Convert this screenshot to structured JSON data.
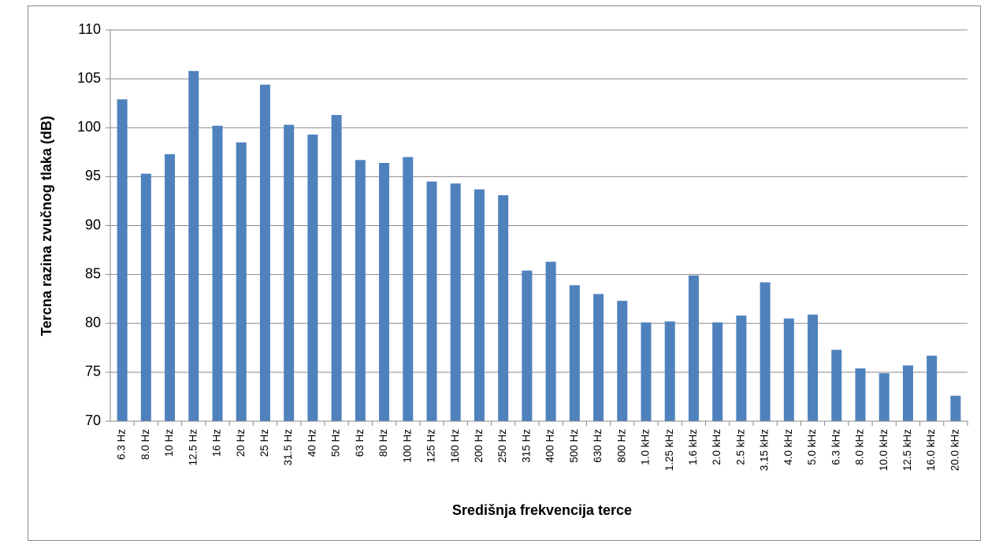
{
  "chart_data": {
    "type": "bar",
    "x_label": "Središnja frekvencija terce",
    "y_label": "Tercna razina zvučnog tlaka (dB)",
    "categories": [
      "6.3 Hz",
      "8.0 Hz",
      "10 Hz",
      "12.5 Hz",
      "16 Hz",
      "20 Hz",
      "25 Hz",
      "31.5 Hz",
      "40 Hz",
      "50 Hz",
      "63 Hz",
      "80 Hz",
      "100 Hz",
      "125 Hz",
      "160 Hz",
      "200 Hz",
      "250 Hz",
      "315 Hz",
      "400 Hz",
      "500 Hz",
      "630 Hz",
      "800 Hz",
      "1.0 kHz",
      "1.25 kHz",
      "1.6 kHz",
      "2.0 kHz",
      "2.5 kHz",
      "3.15 kHz",
      "4.0 kHz",
      "5.0 kHz",
      "6.3 kHz",
      "8.0 kHz",
      "10.0 kHz",
      "12.5 kHz",
      "16.0 kHz",
      "20.0 kHz"
    ],
    "values": [
      102.9,
      95.3,
      97.3,
      105.8,
      100.2,
      98.5,
      104.4,
      100.3,
      99.3,
      101.3,
      96.7,
      96.4,
      97.0,
      94.5,
      94.3,
      93.7,
      93.1,
      85.4,
      86.3,
      83.9,
      83.0,
      82.3,
      80.1,
      80.2,
      84.9,
      80.1,
      80.8,
      84.2,
      80.5,
      80.9,
      77.3,
      75.4,
      74.9,
      75.7,
      76.7,
      72.6
    ],
    "color": "#4f81bd",
    "ylim": [
      70,
      110
    ],
    "yticks": [
      70,
      75,
      80,
      85,
      90,
      95,
      100,
      105,
      110
    ],
    "grid": true
  }
}
